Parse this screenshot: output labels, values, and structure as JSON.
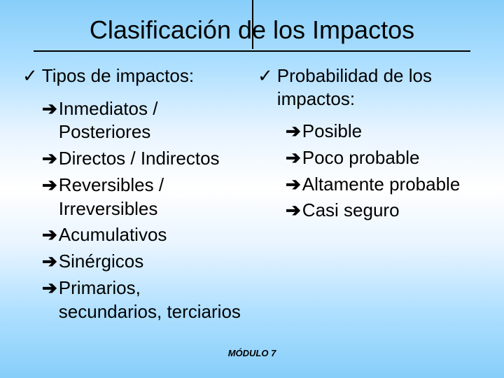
{
  "colors": {
    "gradient_top": "#87cefa",
    "gradient_mid": "#ffffff",
    "gradient_bottom": "#87cefa",
    "text": "#000000",
    "rule": "#000000"
  },
  "typography": {
    "title_fontsize": 36,
    "heading_fontsize": 26,
    "item_fontsize": 26,
    "footer_fontsize": 13,
    "font_family": "Arial"
  },
  "glyphs": {
    "check": "✓",
    "arrow": "➔"
  },
  "title": "Clasificación de los Impactos",
  "left": {
    "heading": "Tipos de impactos:",
    "items": [
      "Inmediatos / Posteriores",
      "Directos / Indirectos",
      "Reversibles / Irreversibles",
      "Acumulativos",
      "Sinérgicos",
      "Primarios, secundarios, terciarios"
    ]
  },
  "right": {
    "heading": "Probabilidad de los impactos:",
    "items": [
      "Posible",
      "Poco probable",
      "Altamente probable",
      "Casi seguro"
    ]
  },
  "footer": "MÓDULO 7"
}
